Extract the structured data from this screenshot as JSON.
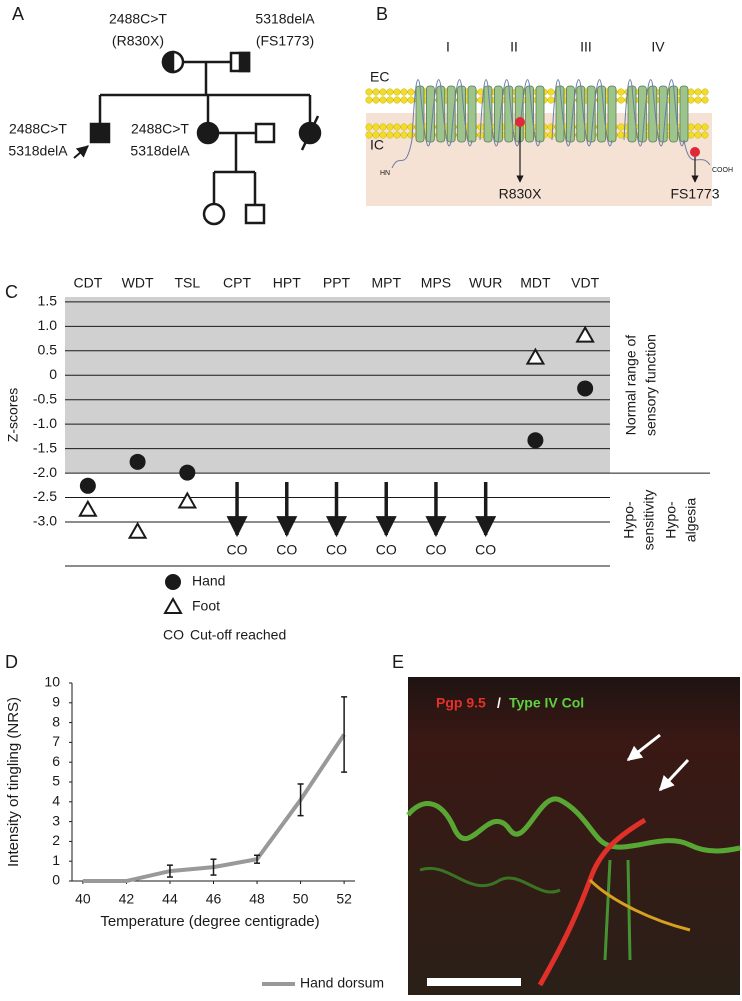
{
  "panel_labels": [
    "A",
    "B",
    "C",
    "D",
    "E"
  ],
  "pedigree": {
    "father_mutation": [
      "2488C>T",
      "(R830X)"
    ],
    "mother_mutation": [
      "5318delA",
      "(FS1773)"
    ],
    "proband_genotype": [
      "2488C>T",
      "5318delA"
    ],
    "sister_genotype": [
      "2488C>T",
      "5318delA"
    ]
  },
  "channel": {
    "domains": [
      "I",
      "II",
      "III",
      "IV"
    ],
    "ec": "EC",
    "ic": "IC",
    "n_terminus": "HN",
    "c_terminus": "COOH",
    "mutations": [
      "R830X",
      "FS1773"
    ]
  },
  "chart_data": [
    {
      "type": "scatter",
      "ylabel": "Z-scores",
      "categories": [
        "CDT",
        "WDT",
        "TSL",
        "CPT",
        "HPT",
        "PPT",
        "MPT",
        "MPS",
        "WUR",
        "MDT",
        "VDT"
      ],
      "series": [
        {
          "name": "Hand",
          "marker": "circle",
          "color": "#1a1a1a",
          "values": [
            -2.26,
            -1.77,
            -1.99,
            null,
            null,
            null,
            null,
            null,
            null,
            -1.33,
            -0.27
          ]
        },
        {
          "name": "Foot",
          "marker": "triangle",
          "color": "#ffffff",
          "values": [
            -2.75,
            -3.2,
            -2.58,
            null,
            null,
            null,
            null,
            null,
            null,
            0.36,
            0.81
          ]
        }
      ],
      "cutoff": [
        false,
        false,
        false,
        true,
        true,
        true,
        true,
        true,
        true,
        false,
        false
      ],
      "cutoff_label": "CO",
      "cutoff_legend": "Cut-off reached",
      "ylim": [
        -3.9,
        1.6
      ],
      "yticks": [
        1.5,
        {
          "value": 1,
          "label": "1.0"
        },
        0.5,
        0,
        -0.5,
        {
          "value": -1,
          "label": "-1.0"
        },
        -1.5,
        {
          "value": -2,
          "label": "-2.0"
        },
        -2.5,
        {
          "value": -3,
          "label": "-3.0"
        }
      ],
      "normal_band": [
        -2,
        1.6
      ],
      "grid": true,
      "annotations": {
        "normal": [
          "Normal range of",
          "sensory function"
        ],
        "hyposensitivity": [
          "Hypo-",
          "sensitivity"
        ],
        "hypoalgesia": [
          "Hypo-",
          "algesia"
        ]
      }
    },
    {
      "type": "line",
      "xlabel": "Temperature (degree centigrade)",
      "ylabel": "Intensity of tingling (NRS)",
      "x": [
        40,
        42,
        44,
        46,
        48,
        50,
        52
      ],
      "series": [
        {
          "name": "Hand dorsum",
          "color": "#999999",
          "values": [
            0,
            0,
            0.5,
            0.7,
            1.1,
            4.1,
            7.4
          ],
          "errors": [
            null,
            null,
            0.3,
            0.4,
            0.2,
            0.8,
            1.9
          ]
        }
      ],
      "xlim": [
        39.5,
        52.5
      ],
      "xticks": [
        40,
        42,
        44,
        46,
        48,
        50,
        52
      ],
      "ylim": [
        0,
        10
      ],
      "yticks": [
        0,
        1,
        2,
        3,
        4,
        5,
        6,
        7,
        8,
        9,
        10
      ]
    }
  ],
  "micrograph": {
    "stain_1": "Pgp 9.5",
    "separator": "/",
    "stain_2": "Type IV Col"
  }
}
